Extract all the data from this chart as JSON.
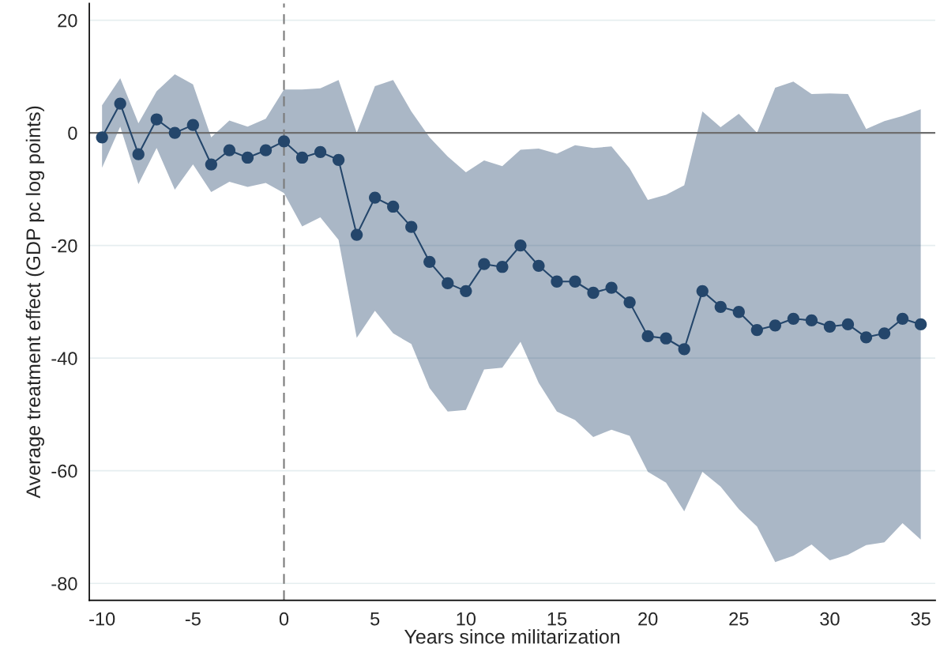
{
  "chart_data": {
    "type": "line",
    "xlabel": "Years since militarization",
    "ylabel": "Average treatment effect (GDP pc log points)",
    "x": [
      -10,
      -9,
      -8,
      -7,
      -6,
      -5,
      -4,
      -3,
      -2,
      -1,
      0,
      1,
      2,
      3,
      4,
      5,
      6,
      7,
      8,
      9,
      10,
      11,
      12,
      13,
      14,
      15,
      16,
      17,
      18,
      19,
      20,
      21,
      22,
      23,
      24,
      25,
      26,
      27,
      28,
      29,
      30,
      31,
      32,
      33,
      34,
      35
    ],
    "series": [
      {
        "color": "#24466b",
        "values": [
          -0.8,
          5.2,
          -3.8,
          2.4,
          0,
          1.4,
          -5.6,
          -3.1,
          -4.4,
          -3.1,
          -1.5,
          -4.4,
          -3.4,
          -4.8,
          -18.1,
          -11.5,
          -13.1,
          -16.7,
          -22.9,
          -26.7,
          -28.1,
          -23.3,
          -23.8,
          -20,
          -23.6,
          -26.4,
          -26.4,
          -28.4,
          -27.5,
          -30.1,
          -36.1,
          -36.5,
          -38.4,
          -28.1,
          -30.9,
          -31.8,
          -35,
          -34.2,
          -33,
          -33.3,
          -34.4,
          -34,
          -36.3,
          -35.6,
          -33,
          -34
        ],
        "upper": [
          4.9,
          9.7,
          1.7,
          7.4,
          10.4,
          8.6,
          -0.8,
          2.2,
          1.1,
          2.5,
          7.7,
          7.7,
          7.9,
          9.4,
          0,
          8.3,
          9.4,
          3.8,
          -0.8,
          -4.2,
          -7,
          -4.9,
          -5.9,
          -3,
          -2.8,
          -3.7,
          -2.2,
          -2.7,
          -2.4,
          -6.3,
          -11.9,
          -11,
          -9.3,
          3.8,
          1,
          3.4,
          0,
          8,
          9.1,
          6.9,
          7,
          6.9,
          0.7,
          2.1,
          3,
          4.2
        ],
        "lower": [
          -6.2,
          1.1,
          -9.1,
          -2.7,
          -10.1,
          -5.6,
          -10.5,
          -8.7,
          -9.6,
          -8.9,
          -10.7,
          -16.6,
          -15,
          -19,
          -36.4,
          -31.6,
          -35.6,
          -37.5,
          -45.3,
          -49.5,
          -49.2,
          -42,
          -41.7,
          -37.1,
          -44.4,
          -49.5,
          -51,
          -54,
          -52.7,
          -53.8,
          -60.2,
          -62.1,
          -67.2,
          -60.2,
          -62.8,
          -66.8,
          -69.9,
          -76.2,
          -75.1,
          -73.1,
          -75.9,
          -74.9,
          -73.2,
          -72.7,
          -69.3,
          -72.2
        ]
      }
    ],
    "xlim": [
      -10.7,
      35.8
    ],
    "ylim": [
      -83,
      23
    ],
    "xticks": [
      -10,
      -5,
      0,
      5,
      10,
      15,
      20,
      25,
      30,
      35
    ],
    "yticks": [
      -80,
      -60,
      -40,
      -20,
      0,
      20
    ],
    "ref_lines": [
      {
        "axis": "y",
        "value": 0,
        "color": "#6e6e6e",
        "line_style": "solid"
      },
      {
        "axis": "x",
        "value": 0,
        "color": "#7a7a7a",
        "line_style": "dashed"
      }
    ],
    "grid": "y",
    "marker": "circle",
    "line_style": "solid"
  }
}
